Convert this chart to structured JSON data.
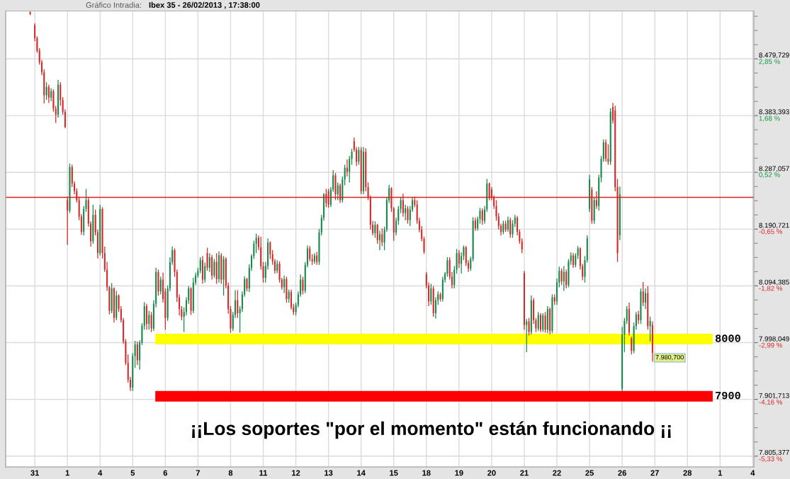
{
  "chart_data": {
    "type": "candlestick",
    "title": "Ibex 35 - 26/02/2013 , 17:38:00",
    "subtitle": "Gráfico Intradia:",
    "annotations": [
      "¡¡Los soportes \"por el momento\" están funcionando ¡¡",
      "7.980,700"
    ],
    "categories": [
      null,
      null,
      null,
      null,
      null,
      null,
      null,
      null,
      null,
      null,
      null,
      null,
      "31",
      null,
      null,
      null,
      null,
      null,
      null,
      null,
      null,
      null,
      null,
      null,
      null,
      null,
      "1",
      null,
      null,
      null,
      null,
      null,
      null,
      null,
      null,
      null,
      null,
      null,
      null,
      null,
      "4",
      null,
      null,
      null,
      null,
      null,
      null,
      null,
      null,
      null,
      null,
      null,
      null,
      null,
      "5",
      null,
      null,
      null,
      null,
      null,
      null,
      null,
      null,
      null,
      null,
      null,
      null,
      null,
      "6",
      null,
      null,
      null,
      null,
      null,
      null,
      null,
      null,
      null,
      null,
      null,
      null,
      null,
      "7",
      null,
      null,
      null,
      null,
      null,
      null,
      null,
      null,
      null,
      null,
      null,
      null,
      null,
      "8",
      null,
      null,
      null,
      null,
      null,
      null,
      null,
      null,
      null,
      null,
      null,
      null,
      null,
      "11",
      null,
      null,
      null,
      null,
      null,
      null,
      null,
      null,
      null,
      null,
      null,
      null,
      null,
      "12",
      null,
      null,
      null,
      null,
      null,
      null,
      null,
      null,
      null,
      null,
      null,
      null,
      null,
      "13",
      null,
      null,
      null,
      null,
      null,
      null,
      null,
      null,
      null,
      null,
      null,
      null,
      null,
      "14",
      null,
      null,
      null,
      null,
      null,
      null,
      null,
      null,
      null,
      null,
      null,
      null,
      null,
      "15",
      null,
      null,
      null,
      null,
      null,
      null,
      null,
      null,
      null,
      null,
      null,
      null,
      null,
      "18",
      null,
      null,
      null,
      null,
      null,
      null,
      null,
      null,
      null,
      null,
      null,
      null,
      null,
      "19",
      null,
      null,
      null,
      null,
      null,
      null,
      null,
      null,
      null,
      null,
      null,
      null,
      null,
      "20",
      null,
      null,
      null,
      null,
      null,
      null,
      null,
      null,
      null,
      null,
      null,
      null,
      null,
      "21",
      null,
      null,
      null,
      null,
      null,
      null,
      null,
      null,
      null,
      null,
      null,
      null,
      null,
      "22",
      null,
      null,
      null,
      null,
      null,
      null,
      null,
      null,
      null,
      null,
      null,
      null,
      null,
      "25",
      null,
      null,
      null,
      null,
      null,
      null,
      null,
      null,
      null,
      null,
      null,
      null,
      null,
      "26",
      null,
      null,
      null,
      null,
      null,
      null,
      null,
      null,
      null,
      null,
      null,
      null,
      null,
      "27",
      null,
      null,
      null,
      null,
      null,
      null,
      null,
      null,
      null,
      null,
      null,
      null,
      null,
      "28",
      null,
      null,
      null,
      null,
      null,
      null,
      null,
      null,
      null,
      null,
      null,
      null,
      null,
      "1",
      null,
      null,
      null,
      null,
      null,
      null,
      null,
      null,
      null,
      null,
      null,
      null,
      null,
      "4"
    ],
    "ohlc": [
      null,
      null,
      null,
      null,
      null,
      null,
      null,
      null,
      null,
      null,
      [
        8559,
        8560,
        8554,
        8556
      ],
      null,
      [
        8537,
        8540,
        8510,
        8515
      ],
      [
        8515,
        8518,
        8490,
        8493
      ],
      [
        8494,
        8498,
        8470,
        8474
      ],
      [
        8474,
        8478,
        8452,
        8457
      ],
      [
        8457,
        8462,
        8404,
        8418
      ],
      [
        8418,
        8440,
        8410,
        8432
      ],
      [
        8432,
        8436,
        8405,
        8414
      ],
      [
        8414,
        8430,
        8408,
        8425
      ],
      [
        8425,
        8428,
        8390,
        8395
      ],
      [
        8395,
        8400,
        8371,
        8385
      ],
      [
        8385,
        8444,
        8380,
        8436
      ],
      [
        8436,
        8440,
        8400,
        8410
      ],
      [
        8410,
        8415,
        8385,
        8390
      ],
      [
        8390,
        8394,
        8362,
        8364
      ],
      [
        8240,
        8246,
        8164,
        8222
      ],
      [
        8222,
        8302,
        8218,
        8296
      ],
      [
        8296,
        8300,
        8262,
        8268
      ],
      [
        8268,
        8272,
        8250,
        8255
      ],
      [
        8255,
        8260,
        8236,
        8240
      ],
      [
        8240,
        8246,
        8206,
        8212
      ],
      [
        8212,
        8216,
        8181,
        8186
      ],
      [
        8186,
        8230,
        8180,
        8225
      ],
      [
        8225,
        8259,
        8220,
        8240
      ],
      [
        8240,
        8244,
        8195,
        8200
      ],
      [
        8200,
        8204,
        8161,
        8170
      ],
      [
        8170,
        8232,
        8166,
        8215
      ],
      [
        8215,
        8224,
        8180,
        8185
      ],
      [
        8185,
        8190,
        8141,
        8150
      ],
      [
        8150,
        8232,
        8146,
        8225
      ],
      [
        8225,
        8228,
        8141,
        8150
      ],
      [
        8150,
        8161,
        8118,
        8122
      ],
      [
        8122,
        8135,
        8086,
        8092
      ],
      [
        8092,
        8094,
        8046,
        8052
      ],
      [
        8052,
        8099,
        8048,
        8090
      ],
      [
        8090,
        8092,
        8032,
        8040
      ],
      [
        8040,
        8086,
        8036,
        8078
      ],
      [
        8078,
        8080,
        8050,
        8055
      ],
      [
        8055,
        8060,
        8032,
        8036
      ],
      [
        8036,
        8040,
        7996,
        8000
      ],
      [
        8000,
        8004,
        7960,
        7964
      ],
      [
        7964,
        7978,
        7930,
        7935
      ],
      [
        7935,
        7940,
        7916,
        7922
      ],
      [
        7922,
        7980,
        7916,
        7975
      ],
      [
        7975,
        8001,
        7955,
        7995
      ],
      [
        7995,
        8000,
        7960,
        7968
      ],
      [
        7968,
        8002,
        7952,
        7998
      ],
      [
        7998,
        8031,
        7994,
        8027
      ],
      [
        8027,
        8067,
        8020,
        8060
      ],
      [
        8060,
        8064,
        8020,
        8030
      ],
      [
        8030,
        8052,
        8020,
        8045
      ],
      [
        8045,
        8050,
        8016,
        8022
      ],
      [
        8022,
        8070,
        8018,
        8064
      ],
      [
        8064,
        8125,
        8058,
        8118
      ],
      [
        8118,
        8122,
        8078,
        8085
      ],
      [
        8085,
        8110,
        8080,
        8105
      ],
      [
        8105,
        8117,
        8066,
        8072
      ],
      [
        8085,
        8090,
        8020,
        8040
      ],
      [
        8040,
        8095,
        8035,
        8090
      ],
      [
        8090,
        8143,
        8085,
        8135
      ],
      [
        8135,
        8161,
        8130,
        8155
      ],
      [
        8155,
        8158,
        8110,
        8118
      ],
      [
        8118,
        8122,
        8067,
        8075
      ],
      [
        8075,
        8080,
        8044,
        8055
      ],
      [
        8055,
        8060,
        8036,
        8042
      ],
      [
        8042,
        8058,
        8016,
        8050
      ],
      [
        8050,
        8075,
        8044,
        8070
      ],
      [
        8070,
        8094,
        8064,
        8090
      ],
      [
        8090,
        8092,
        8045,
        8052
      ],
      [
        8052,
        8108,
        8048,
        8100
      ],
      [
        8100,
        8117,
        8096,
        8112
      ],
      [
        8112,
        8125,
        8108,
        8120
      ],
      [
        8120,
        8143,
        8116,
        8138
      ],
      [
        8138,
        8145,
        8098,
        8105
      ],
      [
        8105,
        8134,
        8100,
        8128
      ],
      [
        8150,
        8159,
        8120,
        8125
      ],
      [
        8125,
        8150,
        8118,
        8143
      ],
      [
        8143,
        8147,
        8105,
        8112
      ],
      [
        8112,
        8140,
        8108,
        8135
      ],
      [
        8135,
        8150,
        8098,
        8106
      ],
      [
        8106,
        8153,
        8100,
        8146
      ],
      [
        8146,
        8150,
        8098,
        8105
      ],
      [
        8105,
        8145,
        8078,
        8140
      ],
      [
        8140,
        8143,
        8090,
        8095
      ],
      [
        8095,
        8100,
        8047,
        8055
      ],
      [
        8055,
        8060,
        8015,
        8022
      ],
      [
        8022,
        8050,
        8018,
        8045
      ],
      [
        8045,
        8087,
        8040,
        8070
      ],
      [
        8070,
        8087,
        8040,
        8048
      ],
      [
        8048,
        8060,
        8015,
        8055
      ],
      [
        8055,
        8085,
        8050,
        8080
      ],
      [
        8080,
        8111,
        8076,
        8106
      ],
      [
        8106,
        8108,
        8085,
        8090
      ],
      [
        8090,
        8131,
        8084,
        8125
      ],
      [
        8125,
        8148,
        8120,
        8145
      ],
      [
        8145,
        8171,
        8140,
        8166
      ],
      [
        8166,
        8183,
        8150,
        8176
      ],
      [
        8176,
        8180,
        8155,
        8160
      ],
      [
        8160,
        8178,
        8122,
        8128
      ],
      [
        8128,
        8135,
        8100,
        8108
      ],
      [
        8108,
        8135,
        8100,
        8128
      ],
      [
        8128,
        8175,
        8122,
        8168
      ],
      [
        8168,
        8170,
        8140,
        8148
      ],
      [
        8148,
        8155,
        8130,
        8136
      ],
      [
        8136,
        8140,
        8115,
        8120
      ],
      [
        8120,
        8138,
        8116,
        8132
      ],
      [
        8132,
        8136,
        8100,
        8105
      ],
      [
        8105,
        8108,
        8088,
        8092
      ],
      [
        8092,
        8112,
        8082,
        8106
      ],
      [
        8106,
        8110,
        8066,
        8072
      ],
      [
        8072,
        8088,
        8066,
        8084
      ],
      [
        8084,
        8088,
        8054,
        8058
      ],
      [
        8058,
        8064,
        8045,
        8050
      ],
      [
        8050,
        8066,
        8044,
        8062
      ],
      [
        8062,
        8085,
        8058,
        8080
      ],
      [
        8080,
        8114,
        8076,
        8105
      ],
      [
        8105,
        8110,
        8080,
        8086
      ],
      [
        8086,
        8135,
        8082,
        8130
      ],
      [
        8130,
        8163,
        8126,
        8158
      ],
      [
        8158,
        8162,
        8136,
        8140
      ],
      [
        8140,
        8148,
        8130,
        8136
      ],
      [
        8136,
        8150,
        8132,
        8146
      ],
      [
        8146,
        8152,
        8130,
        8135
      ],
      [
        8135,
        8191,
        8130,
        8185
      ],
      [
        8185,
        8215,
        8180,
        8210
      ],
      [
        8210,
        8252,
        8205,
        8250
      ],
      [
        8250,
        8259,
        8228,
        8235
      ],
      [
        8255,
        8259,
        8227,
        8232
      ],
      [
        8232,
        8262,
        8228,
        8258
      ],
      [
        8258,
        8291,
        8254,
        8282
      ],
      [
        8282,
        8286,
        8240,
        8250
      ],
      [
        8250,
        8270,
        8240,
        8265
      ],
      [
        8265,
        8268,
        8235,
        8240
      ],
      [
        8240,
        8280,
        8236,
        8275
      ],
      [
        8275,
        8300,
        8265,
        8295
      ],
      [
        8295,
        8309,
        8280,
        8288
      ],
      [
        8288,
        8315,
        8270,
        8310
      ],
      [
        8310,
        8327,
        8300,
        8322
      ],
      [
        8340,
        8346,
        8322,
        8326
      ],
      [
        8326,
        8330,
        8298,
        8305
      ],
      [
        8305,
        8330,
        8300,
        8325
      ],
      [
        8325,
        8330,
        8250,
        8255
      ],
      [
        8255,
        8330,
        8250,
        8322
      ],
      [
        8322,
        8328,
        8255,
        8262
      ],
      [
        8262,
        8270,
        8240,
        8245
      ],
      [
        8245,
        8248,
        8190,
        8198
      ],
      [
        8198,
        8205,
        8180,
        8184
      ],
      [
        8184,
        8204,
        8176,
        8198
      ],
      [
        8198,
        8200,
        8166,
        8172
      ],
      [
        8172,
        8188,
        8155,
        8182
      ],
      [
        8182,
        8192,
        8162,
        8168
      ],
      [
        8168,
        8195,
        8155,
        8190
      ],
      [
        8190,
        8245,
        8186,
        8240
      ],
      [
        8240,
        8266,
        8235,
        8260
      ],
      [
        8260,
        8262,
        8220,
        8226
      ],
      [
        8226,
        8228,
        8171,
        8185
      ],
      [
        8185,
        8210,
        8180,
        8205
      ],
      [
        8205,
        8230,
        8198,
        8225
      ],
      [
        8225,
        8245,
        8218,
        8240
      ],
      [
        8240,
        8251,
        8212,
        8218
      ],
      [
        8218,
        8232,
        8206,
        8226
      ],
      [
        8226,
        8230,
        8200,
        8206
      ],
      [
        8206,
        8230,
        8196,
        8224
      ],
      [
        8224,
        8245,
        8220,
        8240
      ],
      [
        8240,
        8246,
        8228,
        8232
      ],
      [
        8232,
        8240,
        8200,
        8205
      ],
      [
        8205,
        8210,
        8185,
        8190
      ],
      [
        8190,
        8196,
        8170,
        8174
      ],
      [
        8174,
        8178,
        8149,
        8152
      ],
      [
        8114,
        8118,
        8090,
        8095
      ],
      [
        8095,
        8100,
        8060,
        8068
      ],
      [
        8068,
        8098,
        8062,
        8090
      ],
      [
        8090,
        8094,
        8042,
        8048
      ],
      [
        8048,
        8075,
        8039,
        8070
      ],
      [
        8070,
        8085,
        8062,
        8080
      ],
      [
        8080,
        8083,
        8068,
        8072
      ],
      [
        8072,
        8110,
        8068,
        8105
      ],
      [
        8105,
        8118,
        8100,
        8115
      ],
      [
        8115,
        8143,
        8110,
        8138
      ],
      [
        8138,
        8143,
        8105,
        8110
      ],
      [
        8110,
        8118,
        8090,
        8096
      ],
      [
        8096,
        8128,
        8090,
        8122
      ],
      [
        8122,
        8157,
        8115,
        8150
      ],
      [
        8150,
        8155,
        8125,
        8132
      ],
      [
        8132,
        8151,
        8115,
        8145
      ],
      [
        8145,
        8163,
        8138,
        8160
      ],
      [
        8160,
        8162,
        8128,
        8133
      ],
      [
        8133,
        8138,
        8118,
        8124
      ],
      [
        8124,
        8144,
        8120,
        8140
      ],
      [
        8140,
        8211,
        8136,
        8205
      ],
      [
        8205,
        8210,
        8188,
        8192
      ],
      [
        8192,
        8212,
        8188,
        8208
      ],
      [
        8208,
        8227,
        8200,
        8222
      ],
      [
        8222,
        8226,
        8198,
        8205
      ],
      [
        8205,
        8230,
        8200,
        8224
      ],
      [
        8224,
        8276,
        8220,
        8268
      ],
      [
        8268,
        8270,
        8240,
        8245
      ],
      [
        8258,
        8262,
        8240,
        8244
      ],
      [
        8244,
        8248,
        8225,
        8230
      ],
      [
        8230,
        8240,
        8205,
        8212
      ],
      [
        8212,
        8218,
        8190,
        8196
      ],
      [
        8196,
        8200,
        8180,
        8186
      ],
      [
        8186,
        8205,
        8182,
        8200
      ],
      [
        8200,
        8205,
        8186,
        8190
      ],
      [
        8190,
        8212,
        8186,
        8206
      ],
      [
        8206,
        8210,
        8176,
        8182
      ],
      [
        8182,
        8206,
        8176,
        8200
      ],
      [
        8200,
        8215,
        8194,
        8210
      ],
      [
        8210,
        8213,
        8180,
        8186
      ],
      [
        8186,
        8190,
        8166,
        8170
      ],
      [
        8170,
        8175,
        8150,
        8156
      ],
      [
        8116,
        8120,
        8020,
        8028
      ],
      [
        8028,
        8038,
        7982,
        8034
      ],
      [
        8034,
        8040,
        8010,
        8016
      ],
      [
        8016,
        8078,
        8012,
        8070
      ],
      [
        8070,
        8074,
        8030,
        8036
      ],
      [
        8036,
        8040,
        8016,
        8022
      ],
      [
        8022,
        8050,
        8018,
        8045
      ],
      [
        8045,
        8048,
        8016,
        8020
      ],
      [
        8020,
        8048,
        8016,
        8044
      ],
      [
        8044,
        8050,
        8015,
        8020
      ],
      [
        8020,
        8060,
        8014,
        8055
      ],
      [
        8055,
        8058,
        8012,
        8018
      ],
      [
        8018,
        8080,
        8014,
        8075
      ],
      [
        8075,
        8080,
        8062,
        8068
      ],
      [
        8068,
        8107,
        8062,
        8100
      ],
      [
        8100,
        8127,
        8092,
        8120
      ],
      [
        8120,
        8124,
        8096,
        8102
      ],
      [
        8102,
        8128,
        8086,
        8118
      ],
      [
        8118,
        8122,
        8090,
        8096
      ],
      [
        8096,
        8140,
        8092,
        8136
      ],
      [
        8136,
        8151,
        8130,
        8146
      ],
      [
        8146,
        8150,
        8125,
        8130
      ],
      [
        8130,
        8150,
        8126,
        8146
      ],
      [
        8146,
        8162,
        8140,
        8158
      ],
      [
        8158,
        8160,
        8122,
        8128
      ],
      [
        8128,
        8132,
        8104,
        8110
      ],
      [
        8110,
        8145,
        8100,
        8138
      ],
      [
        8138,
        8180,
        8134,
        8175
      ],
      [
        8225,
        8283,
        8220,
        8275
      ],
      [
        8258,
        8262,
        8200,
        8205
      ],
      [
        8205,
        8245,
        8200,
        8240
      ],
      [
        8240,
        8255,
        8225,
        8230
      ],
      [
        8230,
        8283,
        8222,
        8278
      ],
      [
        8278,
        8315,
        8270,
        8310
      ],
      [
        8310,
        8343,
        8305,
        8338
      ],
      [
        8338,
        8343,
        8305,
        8310
      ],
      [
        8310,
        8335,
        8300,
        8305
      ],
      [
        8305,
        8396,
        8300,
        8390
      ],
      [
        8398,
        8405,
        8370,
        8375
      ],
      [
        8392,
        8400,
        8255,
        8262
      ],
      [
        8262,
        8276,
        8135,
        8150
      ],
      [
        8180,
        8263,
        8172,
        8250
      ],
      [
        7920,
        8025,
        7916,
        8012
      ],
      [
        8012,
        8040,
        7982,
        8035
      ],
      [
        8035,
        8060,
        8030,
        8055
      ],
      [
        8055,
        8066,
        8010,
        8015
      ],
      [
        8005,
        8008,
        7978,
        7984
      ],
      [
        7984,
        8032,
        7980,
        8026
      ],
      [
        8026,
        8050,
        8020,
        8046
      ],
      [
        8046,
        8052,
        8030,
        8036
      ],
      [
        8036,
        8090,
        8030,
        8085
      ],
      [
        8085,
        8101,
        8060,
        8066
      ],
      [
        8066,
        8090,
        8055,
        8082
      ],
      [
        8082,
        8094,
        8020,
        8026
      ],
      [
        8026,
        8042,
        8000,
        8035
      ],
      [
        8028,
        8034,
        7966,
        7980.7
      ],
      null,
      null,
      null,
      null,
      null,
      null,
      null,
      null,
      null,
      null,
      null,
      null,
      null,
      null,
      null,
      null,
      null,
      null,
      null,
      null,
      null,
      null,
      null,
      null,
      null,
      null,
      null,
      null,
      null,
      null,
      null,
      null,
      null,
      null,
      null,
      null,
      null,
      null,
      null,
      null,
      null,
      null,
      null
    ],
    "ylim": [
      7787,
      8561
    ],
    "yticks": [
      {
        "value": 7805.377,
        "label": "7.805,377"
      },
      {
        "value": 7901.713,
        "label": "7.901,713"
      },
      {
        "value": 7998.049,
        "label": "7.998,049"
      },
      {
        "value": 8094.385,
        "label": "8.094,385"
      },
      {
        "value": 8190.721,
        "label": "8.190,721"
      },
      {
        "value": 8287.057,
        "label": "8.287,057"
      },
      {
        "value": 8383.393,
        "label": "8.383,393"
      },
      {
        "value": 8479.729,
        "label": "8.479,729"
      }
    ],
    "y2lim": [
      -5.551,
      3.836
    ],
    "y2ticks": [
      {
        "value": -5.33,
        "label": "-5,33 %"
      },
      {
        "value": -4.16,
        "label": "-4,16 %"
      },
      {
        "value": -2.99,
        "label": "-2,99 %"
      },
      {
        "value": -1.82,
        "label": "-1,82 %"
      },
      {
        "value": -0.65,
        "label": "-0,65 %"
      },
      {
        "value": 0.52,
        "label": "0,52 %"
      },
      {
        "value": 1.68,
        "label": "1,68 %"
      },
      {
        "value": 2.85,
        "label": "2,85 %"
      }
    ],
    "ref_lines": [
      {
        "axis": "y2",
        "value": 0,
        "color": "#e02020"
      }
    ],
    "bands": [
      {
        "axis": "y",
        "from": 7995,
        "to": 8013,
        "label": "8000",
        "color": "#ffff00"
      },
      {
        "axis": "y",
        "from": 7898,
        "to": 7916,
        "label": "7900",
        "color": "#ff0000"
      }
    ],
    "grid": true
  }
}
